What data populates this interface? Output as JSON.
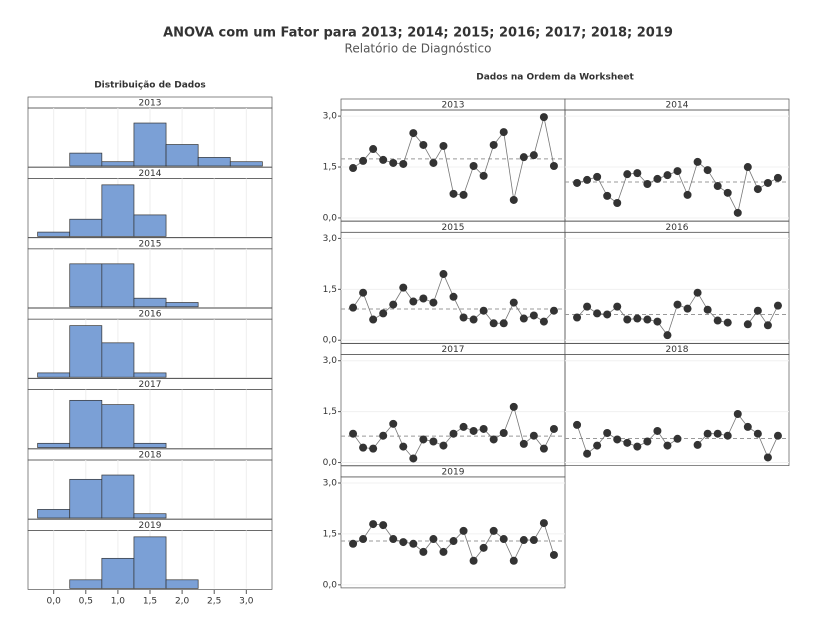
{
  "title": "ANOVA com um Fator para 2013; 2014; 2015; 2016; 2017; 2018; 2019",
  "subtitle": "Relatório de Diagnóstico",
  "chart_data": [
    {
      "type": "histogram",
      "title": "Distribuição de Dados",
      "color": "#7ba0d6",
      "bins": [
        -0.25,
        0.25,
        0.75,
        1.25,
        1.75,
        2.25,
        2.75,
        3.25
      ],
      "xlim": [
        -0.4,
        3.4
      ],
      "ylim": [
        0,
        13.5
      ],
      "xticks": [
        {
          "value": 0,
          "label": "0,0"
        },
        {
          "value": 0.5,
          "label": "0,5"
        },
        {
          "value": 1,
          "label": "1,0"
        },
        {
          "value": 1.5,
          "label": "1,5"
        },
        {
          "value": 2,
          "label": "2,0"
        },
        {
          "value": 2.5,
          "label": "2,5"
        },
        {
          "value": 3,
          "label": "3,0"
        }
      ],
      "panels": [
        {
          "label": "2013",
          "counts": [
            0,
            3,
            1,
            10,
            5,
            2,
            1
          ]
        },
        {
          "label": "2014",
          "counts": [
            1,
            4,
            12,
            5,
            0,
            0,
            0
          ]
        },
        {
          "label": "2015",
          "counts": [
            0,
            10,
            10,
            2,
            1,
            0,
            0
          ]
        },
        {
          "label": "2016",
          "counts": [
            1,
            12,
            8,
            1,
            0,
            0,
            0
          ]
        },
        {
          "label": "2017",
          "counts": [
            1,
            11,
            10,
            1,
            0,
            0,
            0
          ]
        },
        {
          "label": "2018",
          "counts": [
            2,
            9,
            10,
            1,
            0,
            0,
            0
          ]
        },
        {
          "label": "2019",
          "counts": [
            0,
            2,
            7,
            12,
            2,
            0,
            0
          ]
        }
      ]
    },
    {
      "type": "line",
      "title": "Dados na Ordem da Worksheet",
      "color": "#333333",
      "xlim": [
        -0.2,
        22.1
      ],
      "ylim": [
        -0.09,
        3.18
      ],
      "yticks": [
        {
          "value": 0,
          "label": "0,0"
        },
        {
          "value": 1.5,
          "label": "1,5"
        },
        {
          "value": 3,
          "label": "3,0"
        }
      ],
      "panels": [
        {
          "label": "2013",
          "mean": 1.74,
          "values": [
            1.47,
            1.68,
            2.03,
            1.71,
            1.62,
            1.59,
            2.5,
            2.15,
            1.62,
            2.12,
            0.71,
            0.68,
            1.53,
            1.24,
            2.15,
            2.53,
            0.53,
            1.79,
            1.85,
            2.97,
            1.53
          ]
        },
        {
          "label": "2014",
          "mean": 1.06,
          "values": [
            1.03,
            1.12,
            1.21,
            0.65,
            0.44,
            1.29,
            1.32,
            1.0,
            1.15,
            1.26,
            1.38,
            0.68,
            1.65,
            1.41,
            0.94,
            0.74,
            0.15,
            1.5,
            0.85,
            1.03,
            1.18
          ]
        },
        {
          "label": "2015",
          "mean": 0.92,
          "values": [
            0.96,
            1.4,
            0.61,
            0.79,
            1.05,
            1.55,
            1.14,
            1.23,
            1.11,
            1.95,
            1.28,
            0.67,
            0.61,
            0.87,
            0.5,
            0.5,
            1.11,
            0.64,
            0.73,
            0.55,
            0.87
          ]
        },
        {
          "label": "2016",
          "mean": 0.76,
          "values": [
            0.67,
            0.99,
            0.79,
            0.76,
            0.99,
            0.61,
            0.64,
            0.61,
            0.55,
            0.15,
            1.05,
            0.93,
            1.4,
            0.9,
            0.58,
            0.52,
            null,
            0.47,
            0.87,
            0.44,
            1.02
          ]
        },
        {
          "label": "2017",
          "mean": 0.78,
          "values": [
            0.85,
            0.44,
            0.41,
            0.79,
            1.14,
            0.47,
            0.12,
            0.68,
            0.62,
            0.5,
            0.85,
            1.05,
            0.93,
            0.99,
            0.68,
            0.87,
            1.64,
            0.55,
            0.79,
            0.41,
            0.99
          ]
        },
        {
          "label": "2018",
          "mean": 0.71,
          "values": [
            1.11,
            0.26,
            0.5,
            0.87,
            0.68,
            0.58,
            0.47,
            0.62,
            0.93,
            0.5,
            0.7,
            null,
            0.52,
            0.85,
            0.85,
            0.79,
            1.43,
            1.05,
            0.85,
            0.15,
            0.79
          ]
        },
        {
          "label": "2019",
          "mean": 1.29,
          "values": [
            1.21,
            1.35,
            1.79,
            1.76,
            1.35,
            1.26,
            1.21,
            0.97,
            1.35,
            0.97,
            1.29,
            1.59,
            0.71,
            1.09,
            1.59,
            1.35,
            0.71,
            1.32,
            1.32,
            1.82,
            0.88
          ]
        }
      ]
    }
  ]
}
